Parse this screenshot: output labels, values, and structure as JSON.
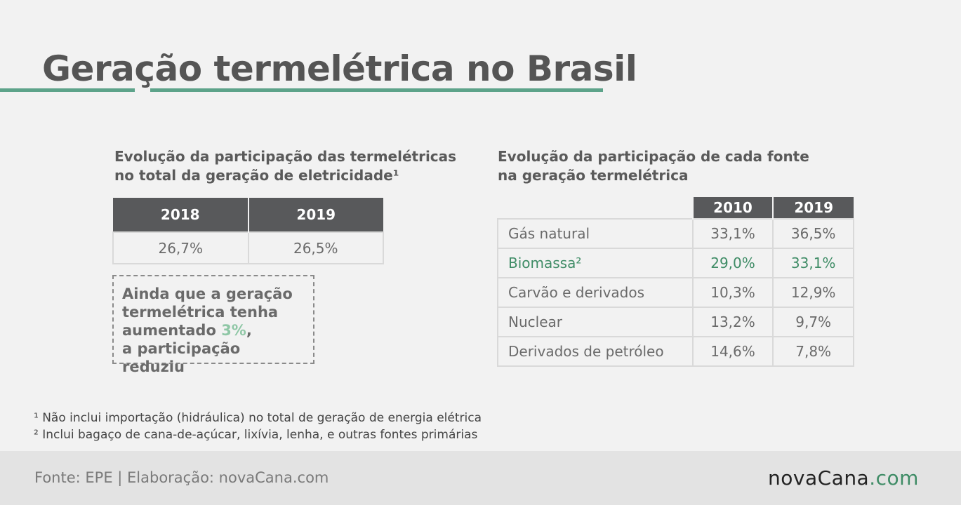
{
  "title": "Geração termelétrica no Brasil",
  "colors": {
    "accent": "#5da38a",
    "highlight_green": "#3f8c66",
    "light_green": "#8fc7a6",
    "header_gray": "#58595b"
  },
  "left": {
    "subtitle_line1": "Evolução da participação das termelétricas",
    "subtitle_line2": "no total da geração de eletricidade¹",
    "headers": [
      "2018",
      "2019"
    ],
    "values": [
      "26,7%",
      "26,5%"
    ],
    "note": {
      "line1": "Ainda que a geração",
      "line2": "termelétrica tenha",
      "line3_pre": "aumentado ",
      "line3_highlight": "3%",
      "line3_post": ",",
      "line4": "a participação reduziu"
    }
  },
  "right": {
    "subtitle_line1": "Evolução da participação de cada fonte",
    "subtitle_line2": "na geração termelétrica",
    "headers": [
      "2010",
      "2019"
    ],
    "rows": [
      {
        "name": "Gás natural",
        "v2010": "33,1%",
        "v2019": "36,5%"
      },
      {
        "name": "Biomassa²",
        "v2010": "29,0%",
        "v2019": "33,1%"
      },
      {
        "name": "Carvão e derivados",
        "v2010": "10,3%",
        "v2019": "12,9%"
      },
      {
        "name": "Nuclear",
        "v2010": "13,2%",
        "v2019": "9,7%"
      },
      {
        "name": "Derivados de petróleo",
        "v2010": "14,6%",
        "v2019": "7,8%"
      }
    ]
  },
  "footnotes": [
    "¹ Não inclui importação (hidráulica) no total de geração de energia elétrica",
    "² Inclui bagaço de cana-de-açúcar, lixívia, lenha, e outras fontes primárias"
  ],
  "footer": {
    "source": "Fonte: EPE | Elaboração: novaCana.com",
    "logo_main": "novaCana",
    "logo_dot": ".",
    "logo_suffix": "com"
  }
}
